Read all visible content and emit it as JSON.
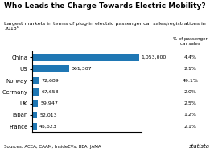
{
  "chart_data": {
    "type": "bar",
    "orientation": "horizontal",
    "title": "Who Leads the Charge Towards Electric Mobility?",
    "subtitle": "Largest markets in terms of plug-in electric passenger car sales/registrations in 2018¹",
    "categories": [
      "China",
      "US",
      "Norway",
      "Germany",
      "UK",
      "Japan",
      "France"
    ],
    "values": [
      1053000,
      361307,
      72689,
      67658,
      59947,
      52013,
      45623
    ],
    "value_labels": [
      "1,053,000",
      "361,307",
      "72,689",
      "67,658",
      "59,947",
      "52,013",
      "45,623"
    ],
    "data_labels": true,
    "xlim": [
      0,
      1074060
    ],
    "tick_labels": "y",
    "grid": false,
    "share_title": "% of passenger\ncar sales",
    "share_labels": [
      "4.4%",
      "2.1%",
      "49.1%",
      "2.0%",
      "2.5%",
      "1.2%",
      "2.1%"
    ],
    "annotations": [
      "Sources: ACEA, CAAM, InsideEVs, BEA, JAMA",
      "statista"
    ]
  }
}
